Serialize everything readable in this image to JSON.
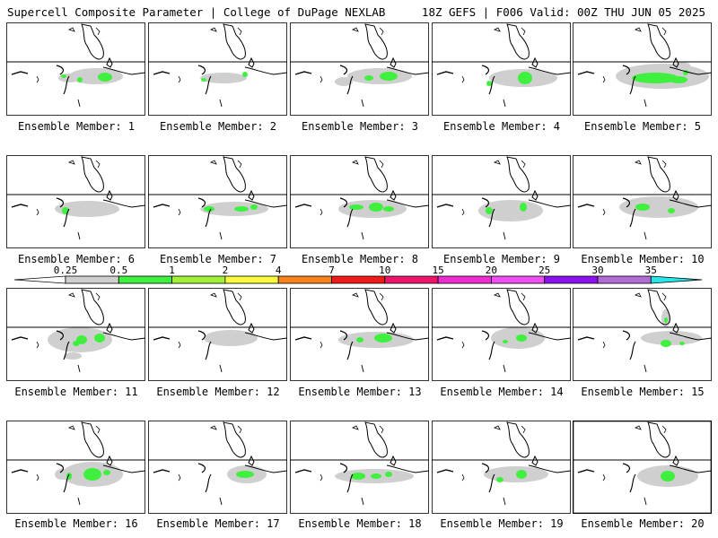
{
  "header": {
    "left": "Supercell Composite Parameter | College of DuPage NEXLAB",
    "right": "18Z GEFS | F006 Valid: 00Z THU JUN 05 2025"
  },
  "member_label_prefix": "Ensemble Member:",
  "members": [
    {
      "number": "1",
      "coverage": "moderate",
      "strongest_category": "1-2"
    },
    {
      "number": "2",
      "coverage": "light",
      "strongest_category": "1-2"
    },
    {
      "number": "3",
      "coverage": "moderate",
      "strongest_category": "1-2"
    },
    {
      "number": "4",
      "coverage": "moderate",
      "strongest_category": "1-2"
    },
    {
      "number": "5",
      "coverage": "widespread",
      "strongest_category": "1-2"
    },
    {
      "number": "6",
      "coverage": "light",
      "strongest_category": "1-2"
    },
    {
      "number": "7",
      "coverage": "light",
      "strongest_category": "1-2"
    },
    {
      "number": "8",
      "coverage": "moderate",
      "strongest_category": "1-2"
    },
    {
      "number": "9",
      "coverage": "moderate",
      "strongest_category": "1-2"
    },
    {
      "number": "10",
      "coverage": "moderate",
      "strongest_category": "1-2"
    },
    {
      "number": "11",
      "coverage": "moderate",
      "strongest_category": "1-2"
    },
    {
      "number": "12",
      "coverage": "light",
      "strongest_category": "0.5-1"
    },
    {
      "number": "13",
      "coverage": "moderate",
      "strongest_category": "1-2"
    },
    {
      "number": "14",
      "coverage": "moderate",
      "strongest_category": "1-2"
    },
    {
      "number": "15",
      "coverage": "light",
      "strongest_category": "1-2"
    },
    {
      "number": "16",
      "coverage": "moderate",
      "strongest_category": "1-2"
    },
    {
      "number": "17",
      "coverage": "light",
      "strongest_category": "1-2"
    },
    {
      "number": "18",
      "coverage": "moderate",
      "strongest_category": "1-2"
    },
    {
      "number": "19",
      "coverage": "moderate",
      "strongest_category": "1-2"
    },
    {
      "number": "20",
      "coverage": "moderate",
      "strongest_category": "1-2"
    }
  ],
  "colorbar": {
    "labels": [
      "0.25",
      "0.5",
      "1",
      "2",
      "4",
      "7",
      "10",
      "15",
      "20",
      "25",
      "30",
      "35"
    ],
    "colors": [
      "#cfcfcf",
      "#3ff03f",
      "#a3f03a",
      "#fbfb3e",
      "#f8831c",
      "#ef1b1b",
      "#ee146a",
      "#ee2ed0",
      "#ef4ff4",
      "#8e12f0",
      "#b26cd8",
      "#27e6e6"
    ]
  }
}
